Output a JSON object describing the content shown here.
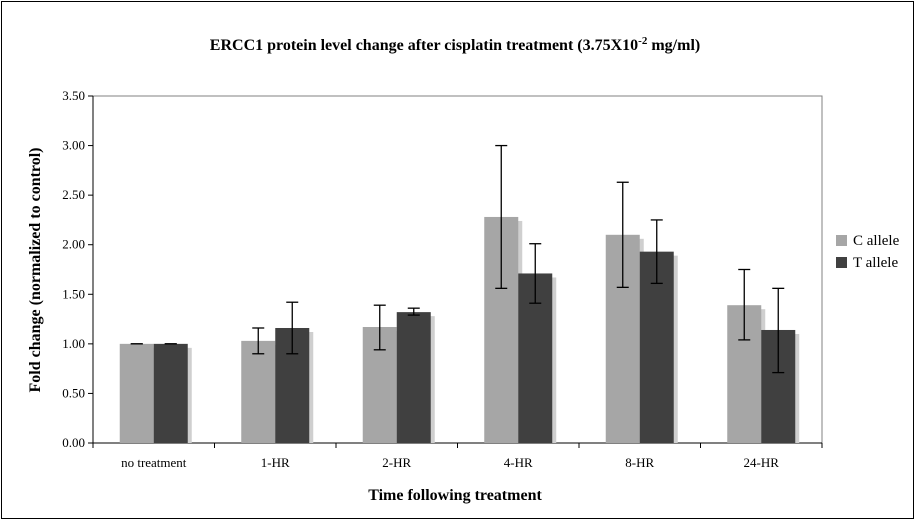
{
  "chart_data": {
    "type": "bar",
    "title": "ERCC1 protein level change after cisplatin treatment (3.75X10",
    "title_superscript": "-2",
    "title_suffix": " mg/ml)",
    "xlabel": "Time following treatment",
    "ylabel": "Fold change (normalized to control)",
    "categories": [
      "no treatment",
      "1-HR",
      "2-HR",
      "4-HR",
      "8-HR",
      "24-HR"
    ],
    "ylim": [
      0,
      3.5
    ],
    "yticks": [
      "0.00",
      "0.50",
      "1.00",
      "1.50",
      "2.00",
      "2.50",
      "3.00",
      "3.50"
    ],
    "grid": false,
    "legend_position": "right",
    "series": [
      {
        "name": "C allele",
        "color": "#a6a6a6",
        "values": [
          1.0,
          1.03,
          1.17,
          2.28,
          2.1,
          1.39
        ],
        "err_low": [
          1.0,
          0.9,
          0.94,
          1.56,
          1.57,
          1.04
        ],
        "err_high": [
          1.0,
          1.16,
          1.39,
          3.0,
          2.63,
          1.75
        ]
      },
      {
        "name": "T allele",
        "color": "#404040",
        "values": [
          1.0,
          1.16,
          1.32,
          1.71,
          1.93,
          1.14
        ],
        "err_low": [
          1.0,
          0.9,
          1.29,
          1.41,
          1.61,
          0.71
        ],
        "err_high": [
          1.0,
          1.42,
          1.36,
          2.01,
          2.25,
          1.56
        ]
      }
    ]
  }
}
